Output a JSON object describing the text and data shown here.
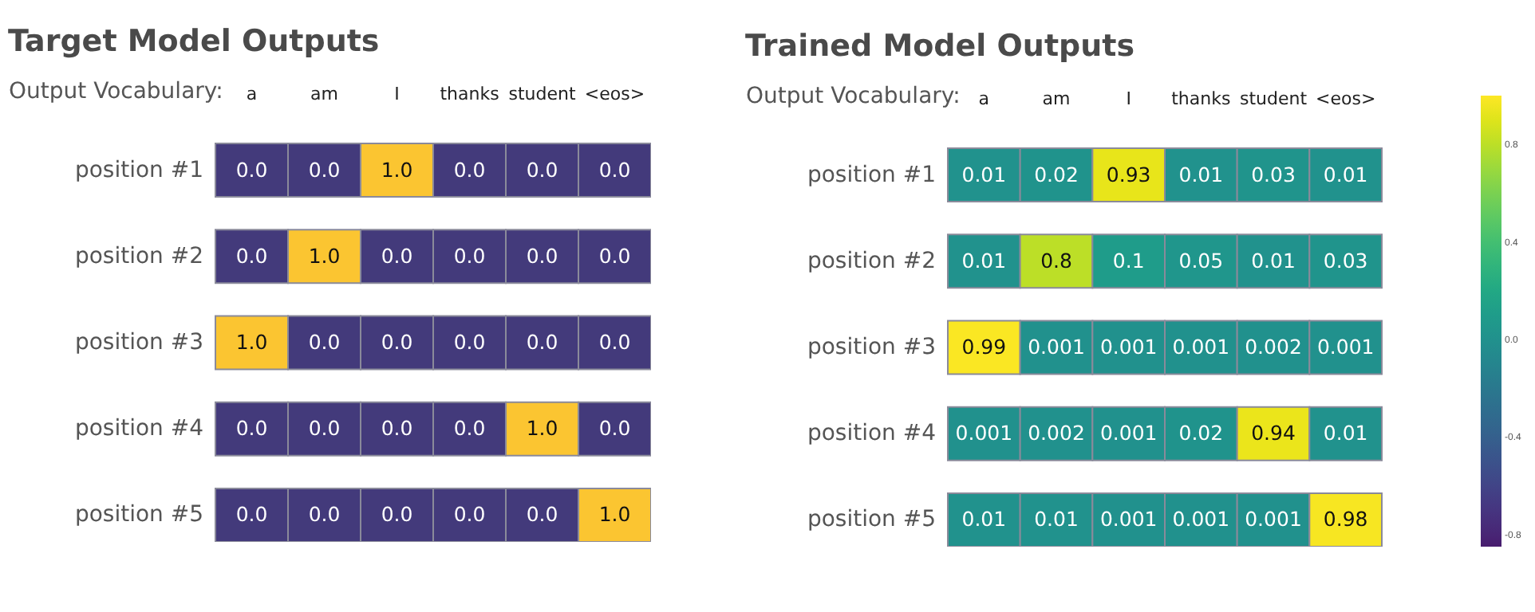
{
  "chart_data": [
    {
      "type": "heatmap",
      "title": "Target Model Outputs",
      "xlabel": "Output Vocabulary:",
      "categories": [
        "a",
        "am",
        "I",
        "thanks",
        "student",
        "<eos>"
      ],
      "y_categories": [
        "position #1",
        "position #2",
        "position #3",
        "position #4",
        "position #5"
      ],
      "cells": [
        [
          0,
          0,
          1,
          0,
          0,
          0
        ],
        [
          0,
          1,
          0,
          0,
          0,
          0
        ],
        [
          1,
          0,
          0,
          0,
          0,
          0
        ],
        [
          0,
          0,
          0,
          0,
          1,
          0
        ],
        [
          0,
          0,
          0,
          0,
          0,
          1
        ]
      ],
      "cell_labels": [
        [
          "0.0",
          "0.0",
          "1.0",
          "0.0",
          "0.0",
          "0.0"
        ],
        [
          "0.0",
          "1.0",
          "0.0",
          "0.0",
          "0.0",
          "0.0"
        ],
        [
          "1.0",
          "0.0",
          "0.0",
          "0.0",
          "0.0",
          "0.0"
        ],
        [
          "0.0",
          "0.0",
          "0.0",
          "0.0",
          "1.0",
          "0.0"
        ],
        [
          "0.0",
          "0.0",
          "0.0",
          "0.0",
          "0.0",
          "1.0"
        ]
      ],
      "data_labels": true
    },
    {
      "type": "heatmap",
      "title": "Trained Model Outputs",
      "xlabel": "Output Vocabulary:",
      "categories": [
        "a",
        "am",
        "I",
        "thanks",
        "student",
        "<eos>"
      ],
      "y_categories": [
        "position #1",
        "position #2",
        "position #3",
        "position #4",
        "position #5"
      ],
      "cells": [
        [
          0.01,
          0.02,
          0.93,
          0.01,
          0.03,
          0.01
        ],
        [
          0.01,
          0.8,
          0.1,
          0.05,
          0.01,
          0.03
        ],
        [
          0.99,
          0.001,
          0.001,
          0.001,
          0.002,
          0.001
        ],
        [
          0.001,
          0.002,
          0.001,
          0.02,
          0.94,
          0.01
        ],
        [
          0.01,
          0.01,
          0.001,
          0.001,
          0.001,
          0.98
        ]
      ],
      "clim": [
        -1,
        1
      ],
      "cticks": [
        -0.8,
        -0.4,
        {
          "value": 0,
          "label": "0.0"
        },
        0.4,
        0.8
      ],
      "data_labels": true
    }
  ]
}
